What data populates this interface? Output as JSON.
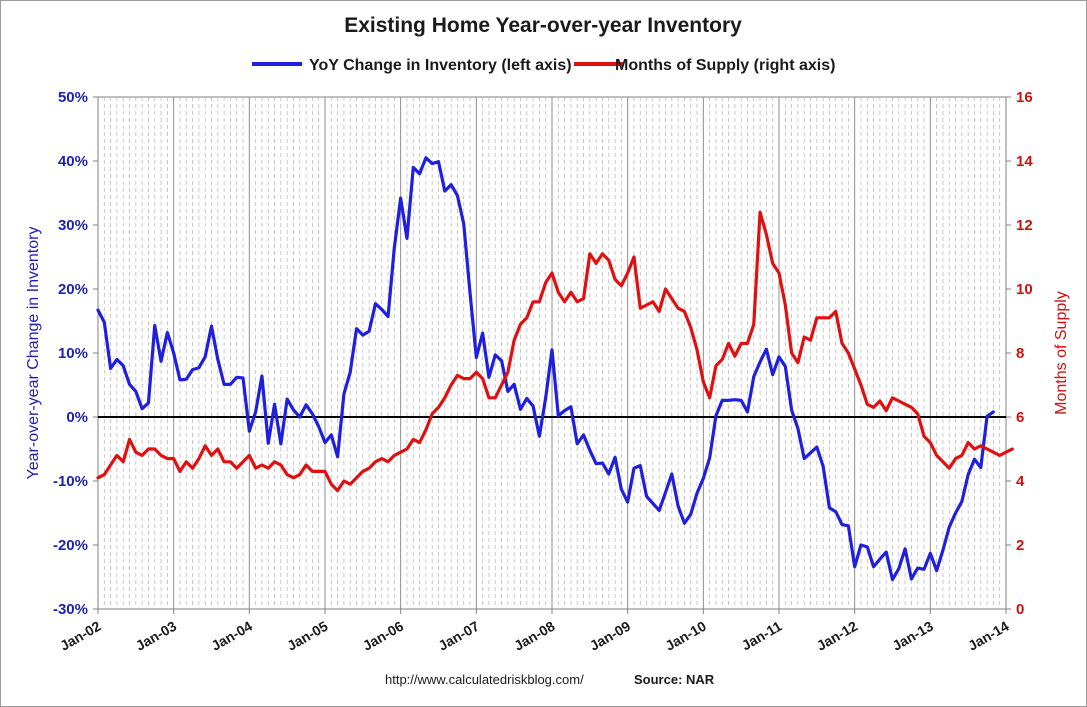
{
  "chart_data": {
    "type": "line",
    "title": "Existing Home Year-over-year Inventory",
    "ylabel_left": "Year-over-year Change in Inventory",
    "ylabel_right": "Months of Supply",
    "ylim_left": [
      -30,
      50
    ],
    "ylim_right": [
      0,
      16
    ],
    "yticks_left": [
      "50%",
      "40%",
      "30%",
      "20%",
      "10%",
      "0%",
      "-10%",
      "-20%",
      "-30%"
    ],
    "yticks_right": [
      "16",
      "14",
      "12",
      "10",
      "8",
      "6",
      "4",
      "2",
      "0"
    ],
    "xticks": [
      "Jan-02",
      "Jan-03",
      "Jan-04",
      "Jan-05",
      "Jan-06",
      "Jan-07",
      "Jan-08",
      "Jan-09",
      "Jan-10",
      "Jan-11",
      "Jan-12",
      "Jan-13",
      "Jan-14"
    ],
    "x_start": "Jan-02",
    "months_span": 144,
    "legend_position": "top-center",
    "series": [
      {
        "name": "YoY Change in Inventory (left axis)",
        "color": "#1f1fe0",
        "axis": "left",
        "values": [
          16.7,
          14.8,
          7.6,
          9.0,
          8.0,
          5.1,
          4.0,
          1.3,
          2.2,
          14.3,
          8.7,
          13.2,
          10.0,
          5.8,
          5.9,
          7.4,
          7.7,
          9.4,
          14.2,
          9.0,
          5.1,
          5.1,
          6.2,
          6.1,
          -2.2,
          0.8,
          6.4,
          -4.1,
          2.0,
          -4.2,
          2.8,
          1.1,
          0.0,
          1.9,
          0.5,
          -1.5,
          -4.0,
          -2.8,
          -6.2,
          3.6,
          7.0,
          13.8,
          12.8,
          13.4,
          17.7,
          16.8,
          15.7,
          26.5,
          34.2,
          27.9,
          39.0,
          38.0,
          40.5,
          39.6,
          39.9,
          35.3,
          36.3,
          34.6,
          30.2,
          19.4,
          9.3,
          13.1,
          6.2,
          9.7,
          8.8,
          4.0,
          5.1,
          1.2,
          2.9,
          1.7,
          -3.0,
          3.0,
          10.5,
          0.2,
          1.0,
          1.6,
          -4.2,
          -2.8,
          -5.2,
          -7.3,
          -7.2,
          -8.9,
          -6.3,
          -11.3,
          -13.3,
          -8.0,
          -7.6,
          -12.4,
          -13.5,
          -14.6,
          -11.8,
          -8.9,
          -13.9,
          -16.6,
          -15.2,
          -11.9,
          -9.6,
          -6.4,
          0.2,
          2.6,
          2.6,
          2.7,
          2.6,
          0.8,
          6.3,
          8.6,
          10.6,
          6.6,
          9.4,
          7.9,
          1.1,
          -1.8,
          -6.5,
          -5.6,
          -4.7,
          -7.7,
          -14.2,
          -14.8,
          -16.8,
          -17.0,
          -23.4,
          -20.0,
          -20.3,
          -23.4,
          -22.2,
          -21.1,
          -25.4,
          -23.7,
          -20.6,
          -25.3,
          -23.6,
          -23.8,
          -21.3,
          -24.0,
          -20.8,
          -17.2,
          -15.0,
          -13.2,
          -9.0,
          -6.6,
          -7.9,
          0.1,
          0.8
        ]
      },
      {
        "name": "Months of Supply (right axis)",
        "color": "#e01010",
        "axis": "right",
        "values": [
          4.1,
          4.2,
          4.5,
          4.8,
          4.6,
          5.3,
          4.9,
          4.8,
          5.0,
          5.0,
          4.8,
          4.7,
          4.7,
          4.3,
          4.6,
          4.4,
          4.7,
          5.1,
          4.8,
          5.0,
          4.6,
          4.6,
          4.4,
          4.6,
          4.8,
          4.4,
          4.5,
          4.4,
          4.6,
          4.5,
          4.2,
          4.1,
          4.2,
          4.5,
          4.3,
          4.3,
          4.3,
          3.9,
          3.7,
          4.0,
          3.9,
          4.1,
          4.3,
          4.4,
          4.6,
          4.7,
          4.6,
          4.8,
          4.9,
          5.0,
          5.3,
          5.2,
          5.6,
          6.1,
          6.3,
          6.6,
          7.0,
          7.3,
          7.2,
          7.2,
          7.4,
          7.2,
          6.6,
          6.6,
          7.0,
          7.4,
          8.4,
          8.9,
          9.1,
          9.6,
          9.6,
          10.2,
          10.5,
          9.9,
          9.6,
          9.9,
          9.6,
          9.7,
          11.1,
          10.8,
          11.1,
          10.9,
          10.3,
          10.1,
          10.5,
          11.0,
          9.4,
          9.5,
          9.6,
          9.3,
          10.0,
          9.7,
          9.4,
          9.3,
          8.8,
          8.1,
          7.1,
          6.6,
          7.6,
          7.8,
          8.3,
          7.9,
          8.3,
          8.3,
          8.9,
          12.4,
          11.7,
          10.8,
          10.5,
          9.5,
          8.0,
          7.7,
          8.5,
          8.4,
          9.1,
          9.1,
          9.1,
          9.3,
          8.3,
          8.0,
          7.5,
          7.0,
          6.4,
          6.3,
          6.5,
          6.2,
          6.6,
          6.5,
          6.4,
          6.3,
          6.1,
          5.4,
          5.2,
          4.8,
          4.6,
          4.4,
          4.7,
          4.8,
          5.2,
          5.0,
          5.1,
          5.0,
          4.9,
          4.8,
          4.9,
          5.0
        ]
      }
    ]
  },
  "footer": {
    "url": "http://www.calculatedriskblog.com/",
    "source": "Source: NAR"
  }
}
